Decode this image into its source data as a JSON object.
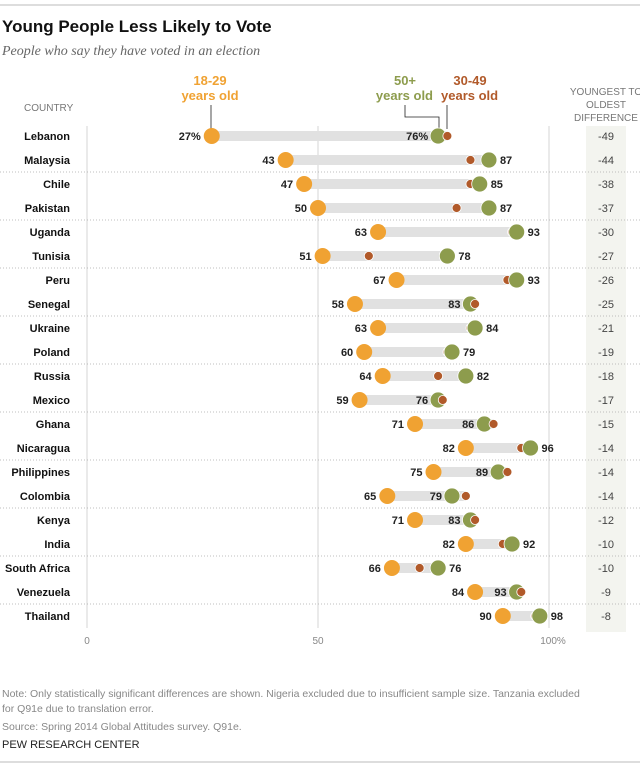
{
  "chart_data": {
    "type": "dot",
    "title": "Young People Less Likely to Vote",
    "subtitle": "People who say they have voted in an election",
    "country_header": "COUNTRY",
    "diff_header": [
      "YOUNGEST TO",
      "OLDEST",
      "DIFFERENCE"
    ],
    "legend": {
      "young": [
        "18-29",
        "years old"
      ],
      "old": [
        "50+",
        "years old"
      ],
      "mid": [
        "30-49",
        "years old"
      ]
    },
    "xlim": [
      0,
      100
    ],
    "ticks": [
      "0",
      "50",
      "100%"
    ],
    "colors": {
      "young": "#f0a232",
      "mid": "#b15a2a",
      "old": "#8d9c4d",
      "bar": "#e1e1e1",
      "diff_bg": "#f3f4ef"
    },
    "rows": [
      {
        "country": "Lebanon",
        "young": 27,
        "mid": 78,
        "old": 76,
        "young_label": "27%",
        "old_label": "76%",
        "diff": "-49"
      },
      {
        "country": "Malaysia",
        "young": 43,
        "mid": 83,
        "old": 87,
        "young_label": "43",
        "old_label": "87",
        "diff": "-44"
      },
      {
        "country": "Chile",
        "young": 47,
        "mid": 83,
        "old": 85,
        "young_label": "47",
        "old_label": "85",
        "diff": "-38"
      },
      {
        "country": "Pakistan",
        "young": 50,
        "mid": 80,
        "old": 87,
        "young_label": "50",
        "old_label": "87",
        "diff": "-37"
      },
      {
        "country": "Uganda",
        "young": 63,
        "mid": 92,
        "old": 93,
        "young_label": "63",
        "old_label": "93",
        "diff": "-30"
      },
      {
        "country": "Tunisia",
        "young": 51,
        "mid": 61,
        "old": 78,
        "young_label": "51",
        "old_label": "78",
        "diff": "-27"
      },
      {
        "country": "Peru",
        "young": 67,
        "mid": 91,
        "old": 93,
        "young_label": "67",
        "old_label": "93",
        "diff": "-26"
      },
      {
        "country": "Senegal",
        "young": 58,
        "mid": 84,
        "old": 83,
        "young_label": "58",
        "old_label": "83",
        "diff": "-25"
      },
      {
        "country": "Ukraine",
        "young": 63,
        "mid": 83,
        "old": 84,
        "young_label": "63",
        "old_label": "84",
        "diff": "-21"
      },
      {
        "country": "Poland",
        "young": 60,
        "mid": 78,
        "old": 79,
        "young_label": "60",
        "old_label": "79",
        "diff": "-19"
      },
      {
        "country": "Russia",
        "young": 64,
        "mid": 76,
        "old": 82,
        "young_label": "64",
        "old_label": "82",
        "diff": "-18"
      },
      {
        "country": "Mexico",
        "young": 59,
        "mid": 77,
        "old": 76,
        "young_label": "59",
        "old_label": "76",
        "diff": "-17"
      },
      {
        "country": "Ghana",
        "young": 71,
        "mid": 88,
        "old": 86,
        "young_label": "71",
        "old_label": "86",
        "diff": "-15"
      },
      {
        "country": "Nicaragua",
        "young": 82,
        "mid": 94,
        "old": 96,
        "young_label": "82",
        "old_label": "96",
        "diff": "-14"
      },
      {
        "country": "Philippines",
        "young": 75,
        "mid": 91,
        "old": 89,
        "young_label": "75",
        "old_label": "89",
        "diff": "-14"
      },
      {
        "country": "Colombia",
        "young": 65,
        "mid": 82,
        "old": 79,
        "young_label": "65",
        "old_label": "79",
        "diff": "-14"
      },
      {
        "country": "Kenya",
        "young": 71,
        "mid": 84,
        "old": 83,
        "young_label": "71",
        "old_label": "83",
        "diff": "-12"
      },
      {
        "country": "India",
        "young": 82,
        "mid": 90,
        "old": 92,
        "young_label": "82",
        "old_label": "92",
        "diff": "-10"
      },
      {
        "country": "South Africa",
        "young": 66,
        "mid": 72,
        "old": 76,
        "young_label": "66",
        "old_label": "76",
        "diff": "-10"
      },
      {
        "country": "Venezuela",
        "young": 84,
        "mid": 94,
        "old": 93,
        "young_label": "84",
        "old_label": "93",
        "diff": "-9"
      },
      {
        "country": "Thailand",
        "young": 90,
        "mid": 97,
        "old": 98,
        "young_label": "90",
        "old_label": "98",
        "diff": "-8"
      }
    ]
  },
  "footer": {
    "note_lines": [
      "Note: Only statistically significant differences are shown. Nigeria excluded due to insufficient sample size. Tanzania excluded",
      "for Q91e due to translation error."
    ],
    "source": "Source: Spring 2014 Global Attitudes survey. Q91e.",
    "org": "PEW RESEARCH CENTER"
  }
}
